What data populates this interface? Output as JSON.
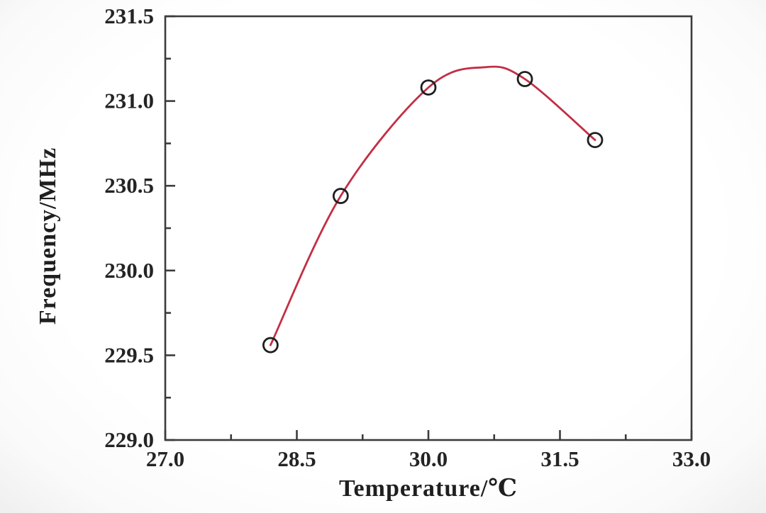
{
  "chart_data": {
    "type": "scatter",
    "title": "",
    "xlabel": "Temperature/℃",
    "ylabel": "Frequency/MHz",
    "xlim": [
      27.0,
      33.0
    ],
    "xticks": [
      27.0,
      28.5,
      30.0,
      31.5,
      33.0
    ],
    "x_minor_ticks": [
      27.75,
      29.25,
      30.75,
      32.25
    ],
    "ylim": [
      229.0,
      231.5
    ],
    "yticks": [
      229.0,
      229.5,
      230.0,
      230.5,
      231.0,
      231.5
    ],
    "y_minor_ticks": [
      229.25,
      229.75,
      230.25,
      230.75,
      231.25
    ],
    "tick_label_decimals": 1,
    "grid": false,
    "legend": null,
    "series": [
      {
        "name": "fit-curve",
        "type": "smooth-line",
        "color": "#c22f45",
        "line_width": 2.8,
        "points": [
          [
            28.2,
            229.56
          ],
          [
            29.0,
            230.44
          ],
          [
            30.0,
            231.08
          ],
          [
            30.65,
            231.2
          ],
          [
            31.1,
            231.13
          ],
          [
            31.9,
            230.77
          ]
        ]
      },
      {
        "name": "measured-points",
        "type": "scatter",
        "marker": "open-circle",
        "marker_color": "#1f1f1f",
        "marker_radius": 10,
        "marker_stroke_width": 2.8,
        "points": [
          [
            28.2,
            229.56
          ],
          [
            29.0,
            230.44
          ],
          [
            30.0,
            231.08
          ],
          [
            31.1,
            231.13
          ],
          [
            31.9,
            230.77
          ]
        ]
      }
    ]
  },
  "style": {
    "frame_color": "#3c3c3c",
    "tick_color": "#3c3c3c",
    "text_color": "#242424",
    "background": "#fdfdfd"
  }
}
